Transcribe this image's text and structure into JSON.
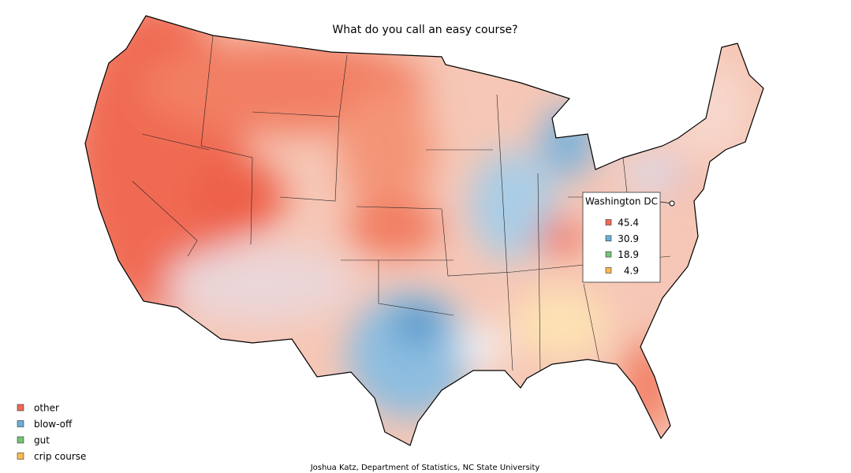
{
  "title": "What do you call an easy course?",
  "credit": "Joshua Katz, Department of Statistics, NC State University",
  "legend": [
    {
      "label": "other",
      "color": "#ef6a53"
    },
    {
      "label": "blow-off",
      "color": "#6aaed6"
    },
    {
      "label": "gut",
      "color": "#74c476"
    },
    {
      "label": "crip course",
      "color": "#fdb84f"
    }
  ],
  "tooltip": {
    "location": "Washington DC",
    "values": [
      45.4,
      30.9,
      18.9,
      4.9
    ]
  }
}
